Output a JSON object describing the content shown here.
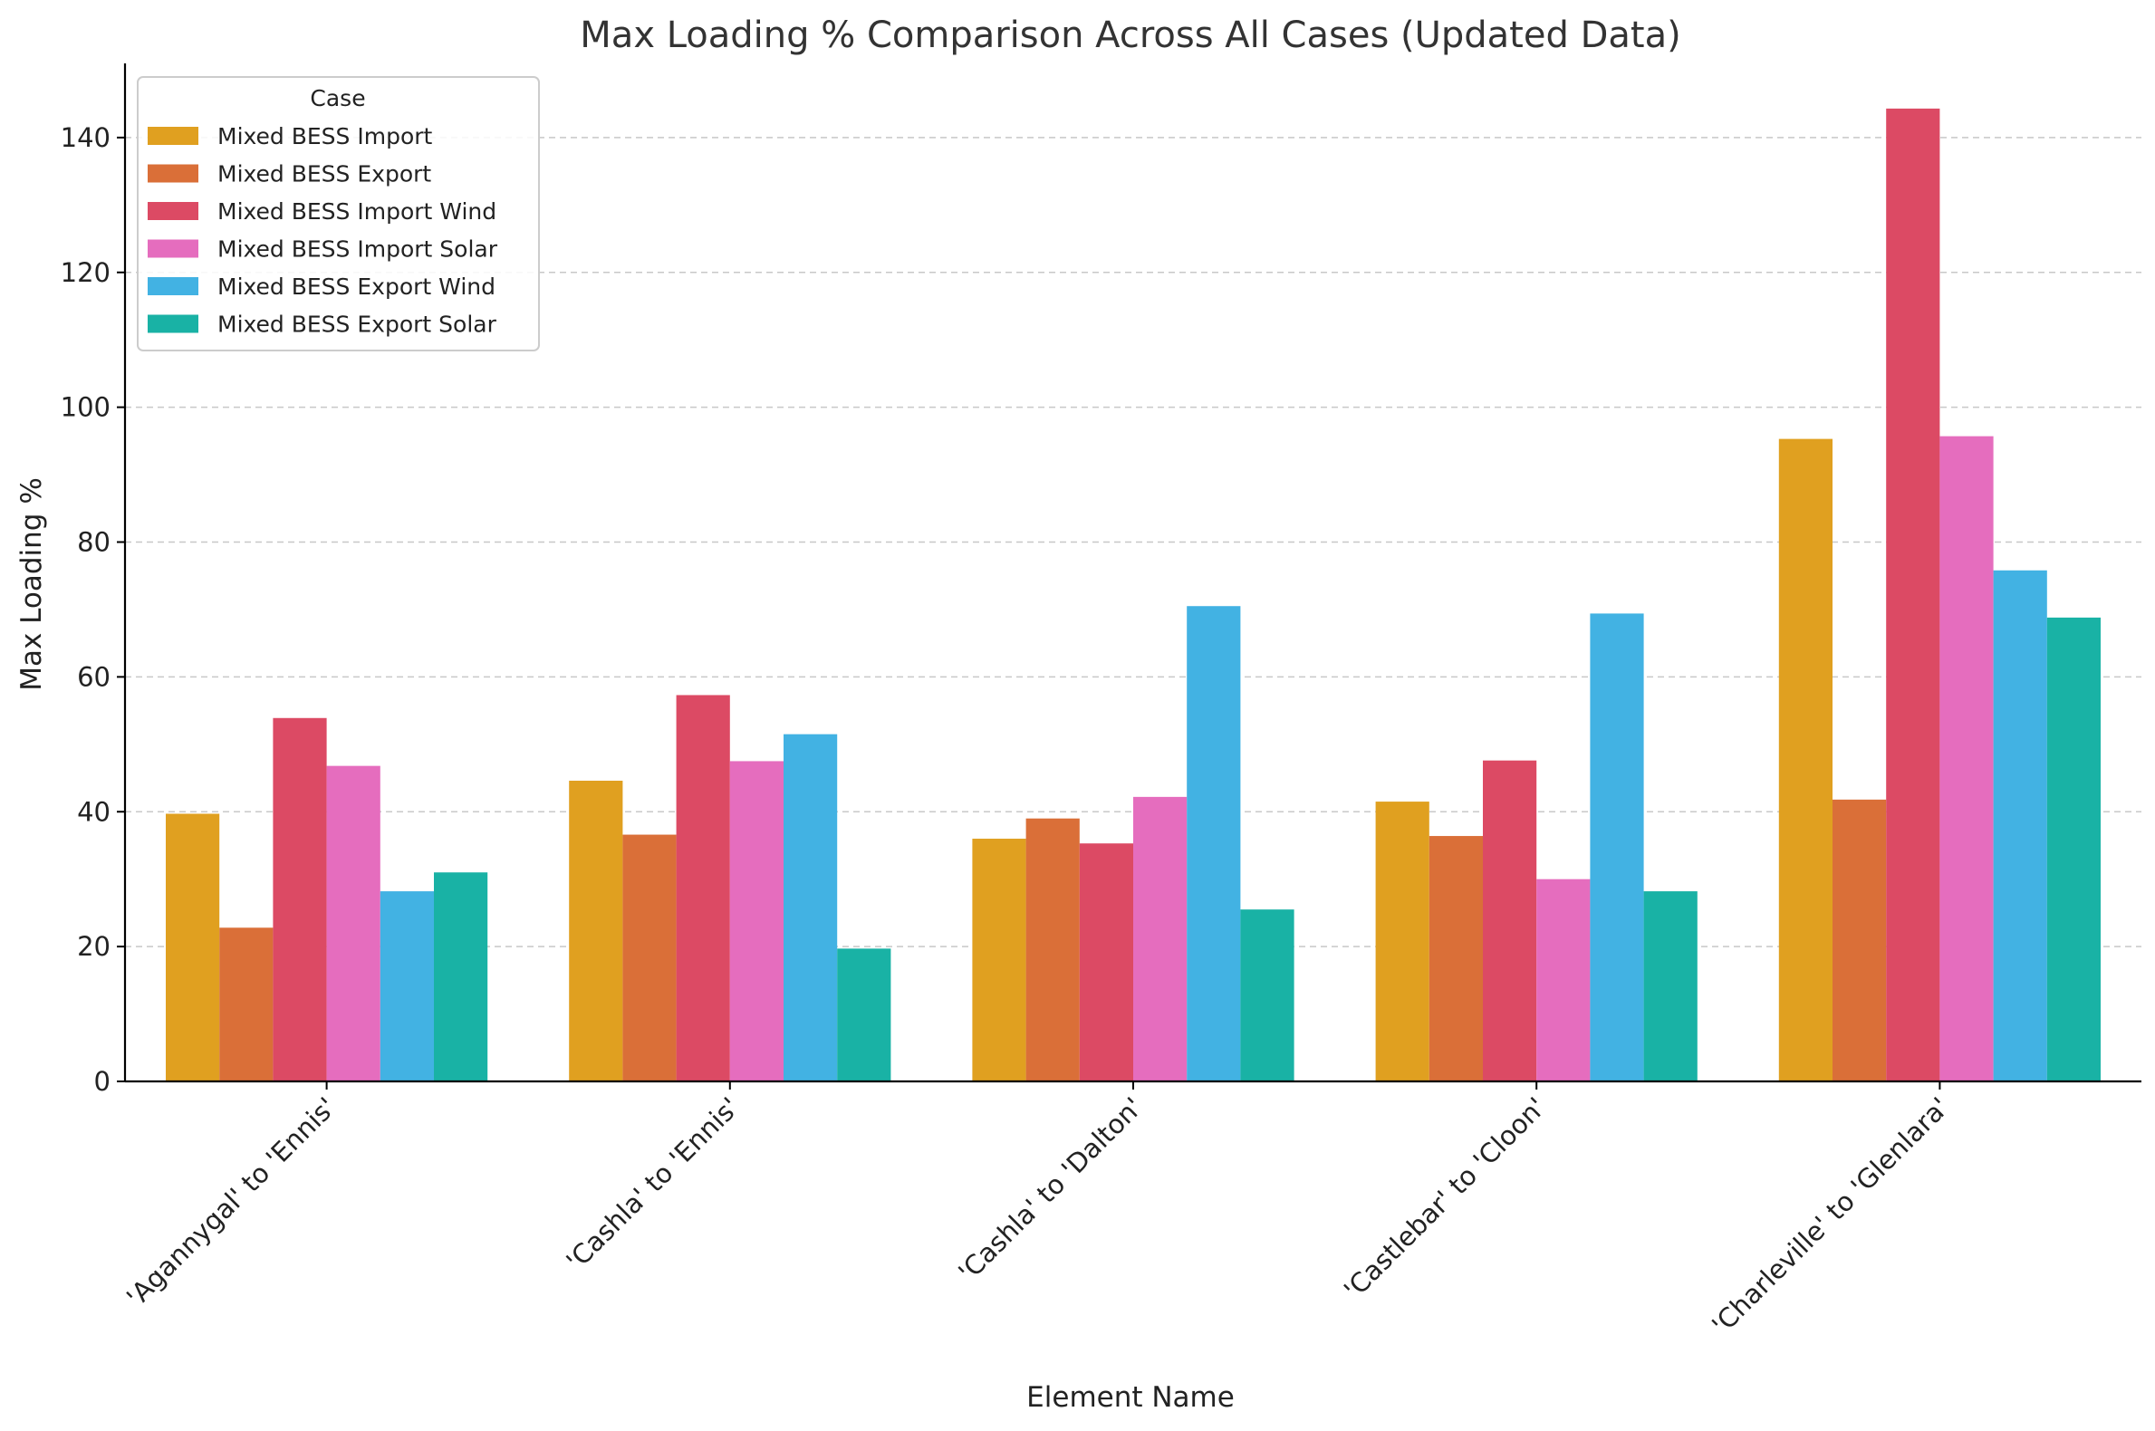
{
  "chart_data": {
    "type": "bar",
    "title": "Max Loading % Comparison Across All Cases (Updated Data)",
    "xlabel": "Element Name",
    "ylabel": "Max Loading %",
    "categories": [
      "'Agannygal' to 'Ennis'",
      "'Cashla' to 'Ennis'",
      "'Cashla' to 'Dalton'",
      "'Castlebar' to 'Cloon'",
      "'Charleville' to 'Glenlara'"
    ],
    "series": [
      {
        "name": "Mixed BESS Import",
        "color": "#E0A020",
        "values": [
          39.7,
          44.6,
          36.0,
          41.5,
          95.3
        ]
      },
      {
        "name": "Mixed BESS Export",
        "color": "#DA6F38",
        "values": [
          22.8,
          36.6,
          39.0,
          36.4,
          41.8
        ]
      },
      {
        "name": "Mixed BESS Import Wind",
        "color": "#DC4A64",
        "values": [
          53.9,
          57.3,
          35.3,
          47.6,
          144.3
        ]
      },
      {
        "name": "Mixed BESS Import Solar",
        "color": "#E56DBE",
        "values": [
          46.8,
          47.5,
          42.2,
          30.0,
          95.7
        ]
      },
      {
        "name": "Mixed BESS Export Wind",
        "color": "#42B2E3",
        "values": [
          28.2,
          51.5,
          70.5,
          69.4,
          75.8
        ]
      },
      {
        "name": "Mixed BESS Export Solar",
        "color": "#19B2A5",
        "values": [
          31.0,
          19.7,
          25.5,
          28.2,
          68.8
        ]
      }
    ],
    "ylim": [
      0,
      151
    ],
    "yticks": [
      0,
      20,
      40,
      60,
      80,
      100,
      120,
      140
    ],
    "grid": "y-dashed",
    "legend": {
      "title": "Case",
      "position": "top-left"
    }
  }
}
